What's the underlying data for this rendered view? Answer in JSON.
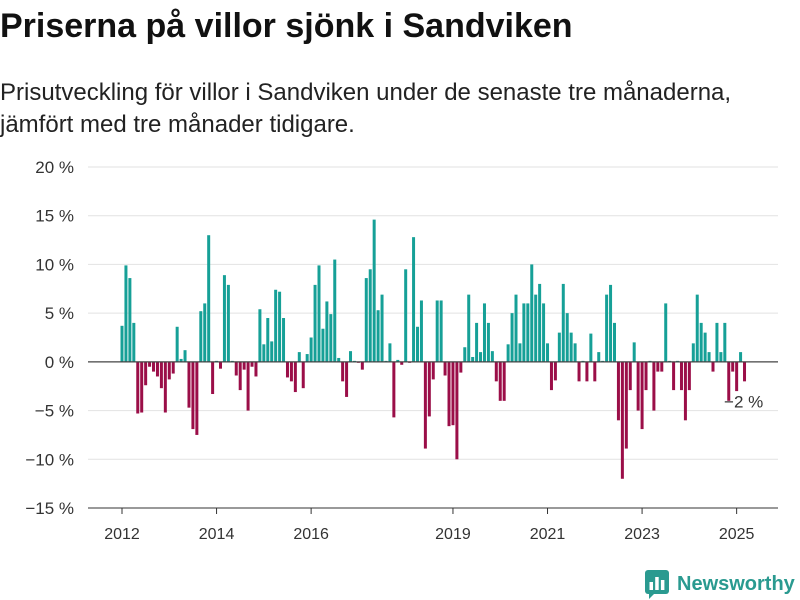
{
  "chart_data": {
    "type": "bar",
    "title": "Priserna på villor sjönk i Sandviken",
    "subtitle": "Prisutveckling för villor i Sandviken under de senaste tre månaderna, jämfört med tre månader tidigare.",
    "xlabel": "",
    "ylabel": "",
    "unit": "%",
    "ylim": [
      -15,
      20
    ],
    "grid": true,
    "y_ticks": [
      20,
      15,
      10,
      5,
      0,
      -5,
      -10,
      -15
    ],
    "y_tick_labels": [
      "20 %",
      "15 %",
      "10 %",
      "5 %",
      "0 %",
      "−5 %",
      "−10 %",
      "−15 %"
    ],
    "x_ticks": [
      "2012-01",
      "2014-01",
      "2016-01",
      "2019-01",
      "2021-01",
      "2023-01",
      "2025-01"
    ],
    "x_tick_labels": [
      "2012",
      "2014",
      "2016",
      "2019",
      "2021",
      "2023",
      "2025"
    ],
    "colors": {
      "positive": "#16a097",
      "negative": "#9b0e48",
      "zero_line": "#444444",
      "grid": "#e2e2e2"
    },
    "annotation": {
      "x": "2025-03",
      "text": "−2 %"
    },
    "x": [
      "2012-01",
      "2012-02",
      "2012-03",
      "2012-04",
      "2012-05",
      "2012-06",
      "2012-07",
      "2012-08",
      "2012-09",
      "2012-10",
      "2012-11",
      "2012-12",
      "2013-01",
      "2013-02",
      "2013-03",
      "2013-04",
      "2013-05",
      "2013-06",
      "2013-07",
      "2013-08",
      "2013-09",
      "2013-10",
      "2013-11",
      "2013-12",
      "2014-01",
      "2014-02",
      "2014-03",
      "2014-04",
      "2014-05",
      "2014-06",
      "2014-07",
      "2014-08",
      "2014-09",
      "2014-10",
      "2014-11",
      "2014-12",
      "2015-01",
      "2015-02",
      "2015-03",
      "2015-04",
      "2015-05",
      "2015-06",
      "2015-07",
      "2015-08",
      "2015-09",
      "2015-10",
      "2015-11",
      "2015-12",
      "2016-01",
      "2016-02",
      "2016-03",
      "2016-04",
      "2016-05",
      "2016-06",
      "2016-07",
      "2016-08",
      "2016-09",
      "2016-10",
      "2016-11",
      "2016-12",
      "2017-01",
      "2017-02",
      "2017-03",
      "2017-04",
      "2017-05",
      "2017-06",
      "2017-07",
      "2017-08",
      "2017-09",
      "2017-10",
      "2017-11",
      "2017-12",
      "2018-01",
      "2018-02",
      "2018-03",
      "2018-04",
      "2018-05",
      "2018-06",
      "2018-07",
      "2018-08",
      "2018-09",
      "2018-10",
      "2018-11",
      "2018-12",
      "2019-01",
      "2019-02",
      "2019-03",
      "2019-04",
      "2019-05",
      "2019-06",
      "2019-07",
      "2019-08",
      "2019-09",
      "2019-10",
      "2019-11",
      "2019-12",
      "2020-01",
      "2020-02",
      "2020-03",
      "2020-04",
      "2020-05",
      "2020-06",
      "2020-07",
      "2020-08",
      "2020-09",
      "2020-10",
      "2020-11",
      "2020-12",
      "2021-01",
      "2021-02",
      "2021-03",
      "2021-04",
      "2021-05",
      "2021-06",
      "2021-07",
      "2021-08",
      "2021-09",
      "2021-10",
      "2021-11",
      "2021-12",
      "2022-01",
      "2022-02",
      "2022-03",
      "2022-04",
      "2022-05",
      "2022-06",
      "2022-07",
      "2022-08",
      "2022-09",
      "2022-10",
      "2022-11",
      "2022-12",
      "2023-01",
      "2023-02",
      "2023-03",
      "2023-04",
      "2023-05",
      "2023-06",
      "2023-07",
      "2023-08",
      "2023-09",
      "2023-10",
      "2023-11",
      "2023-12",
      "2024-01",
      "2024-02",
      "2024-03",
      "2024-04",
      "2024-05",
      "2024-06",
      "2024-07",
      "2024-08",
      "2024-09",
      "2024-10",
      "2024-11",
      "2024-12",
      "2025-01",
      "2025-02",
      "2025-03"
    ],
    "values": [
      3.7,
      9.9,
      8.6,
      4.0,
      -5.3,
      -5.2,
      -2.4,
      -0.5,
      -1.0,
      -1.5,
      -2.7,
      -5.2,
      -1.8,
      -1.2,
      3.6,
      0.3,
      1.2,
      -4.7,
      -6.9,
      -7.5,
      5.2,
      6.0,
      13.0,
      -3.3,
      0.1,
      -0.7,
      8.9,
      7.9,
      0.1,
      -1.4,
      -2.9,
      -0.8,
      -5.0,
      -0.5,
      -1.5,
      5.4,
      1.8,
      4.5,
      2.1,
      7.4,
      7.2,
      4.5,
      -1.6,
      -2.0,
      -3.1,
      1.0,
      -2.7,
      0.8,
      2.5,
      7.9,
      9.9,
      3.4,
      6.2,
      4.9,
      10.5,
      0.4,
      -2.0,
      -3.6,
      1.1,
      0.1,
      -0.1,
      -0.8,
      8.6,
      9.5,
      14.6,
      5.3,
      6.9,
      0.1,
      1.9,
      -5.7,
      0.2,
      -0.3,
      9.5,
      -0.1,
      12.8,
      3.6,
      6.3,
      -8.9,
      -5.6,
      -1.8,
      6.3,
      6.3,
      -1.4,
      -6.6,
      -6.5,
      -10.0,
      -1.1,
      1.5,
      6.9,
      0.5,
      4.0,
      1.0,
      6.0,
      4.0,
      1.1,
      -2.0,
      -4.0,
      -4.0,
      1.8,
      5.0,
      6.9,
      1.9,
      6.0,
      6.0,
      10.0,
      6.9,
      8.0,
      6.0,
      1.9,
      -2.9,
      -1.9,
      3.0,
      8.0,
      5.0,
      3.0,
      1.9,
      -2.0,
      0.1,
      -2.0,
      2.9,
      -2.0,
      1.0,
      0.1,
      6.9,
      7.9,
      4.0,
      -6.0,
      -12.0,
      -8.9,
      -2.9,
      2.0,
      -5.0,
      -6.9,
      -2.9,
      0.1,
      -5.0,
      -1.0,
      -1.0,
      6.0,
      0.1,
      -2.9,
      0.1,
      -2.9,
      -6.0,
      -2.9,
      1.9,
      6.9,
      4.0,
      3.0,
      1.0,
      -1.0,
      4.0,
      1.0,
      4.0,
      -4.0,
      -1.0,
      -3.0,
      1.0,
      -2.0
    ]
  },
  "branding": {
    "logo_text": "Newsworthy",
    "logo_color": "#2a9a90",
    "logo_icon": "bar-chart-logo-icon"
  }
}
